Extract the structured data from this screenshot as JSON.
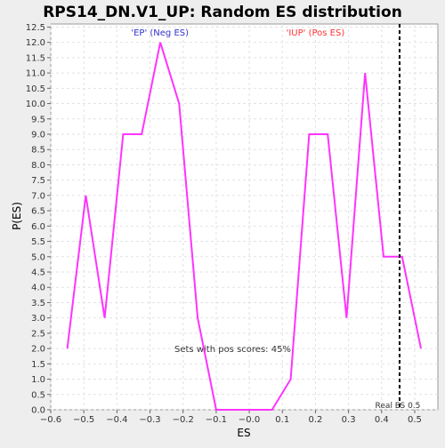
{
  "chart_data": {
    "type": "line",
    "title": "RPS14_DN.V1_UP: Random ES distribution",
    "xlabel": "ES",
    "ylabel": "P(ES)",
    "xlim": [
      -0.6,
      0.57
    ],
    "ylim": [
      0,
      12.6
    ],
    "x_ticks": [
      -0.6,
      -0.5,
      -0.4,
      -0.3,
      -0.2,
      -0.1,
      0.0,
      0.1,
      0.2,
      0.3,
      0.4,
      0.5
    ],
    "x_tick_labels": [
      "−0.6",
      "−0.5",
      "−0.4",
      "−0.3",
      "−0.2",
      "−0.1",
      "−0.0",
      "0.1",
      "0.2",
      "0.3",
      "0.4",
      "0.5"
    ],
    "y_ticks": [
      0,
      0.5,
      1,
      1.5,
      2,
      2.5,
      3,
      3.5,
      4,
      4.5,
      5,
      5.5,
      6,
      6.5,
      7,
      7.5,
      8,
      8.5,
      9,
      9.5,
      10,
      10.5,
      11,
      11.5,
      12,
      12.5
    ],
    "y_tick_labels": [
      "0.0",
      "0.5",
      "1.0",
      "1.5",
      "2.0",
      "2.5",
      "3.0",
      "3.5",
      "4.0",
      "4.5",
      "5.0",
      "5.5",
      "6.0",
      "6.5",
      "7.0",
      "7.5",
      "8.0",
      "8.5",
      "9.0",
      "9.5",
      "10.0",
      "10.5",
      "11.0",
      "11.5",
      "12.0",
      "12.5"
    ],
    "grid": true,
    "series": [
      {
        "color": "#ff33ff",
        "x": [
          -0.55,
          -0.494,
          -0.437,
          -0.381,
          -0.325,
          -0.269,
          -0.212,
          -0.156,
          -0.1,
          -0.044,
          0.012,
          0.069,
          0.125,
          0.181,
          0.237,
          0.294,
          0.35,
          0.406,
          0.462,
          0.519
        ],
        "y": [
          2.0,
          7.0,
          3.0,
          9.0,
          9.0,
          12.0,
          10.0,
          3.0,
          0.0,
          0.0,
          0.0,
          0.0,
          1.0,
          9.0,
          9.0,
          3.0,
          11.0,
          5.0,
          5.0,
          2.0
        ]
      }
    ],
    "real_es": {
      "value": 0.5,
      "label": "Real ES 0.5",
      "color": "#000000"
    },
    "annotations": [
      {
        "text": "'EP' (Neg ES)",
        "color": "#3333cc",
        "x": -0.27
      },
      {
        "text": "'IUP' (Pos ES)",
        "color": "#ff3333",
        "x": 0.2
      }
    ],
    "pos_scores_text": "Sets with pos scores: 45%"
  }
}
